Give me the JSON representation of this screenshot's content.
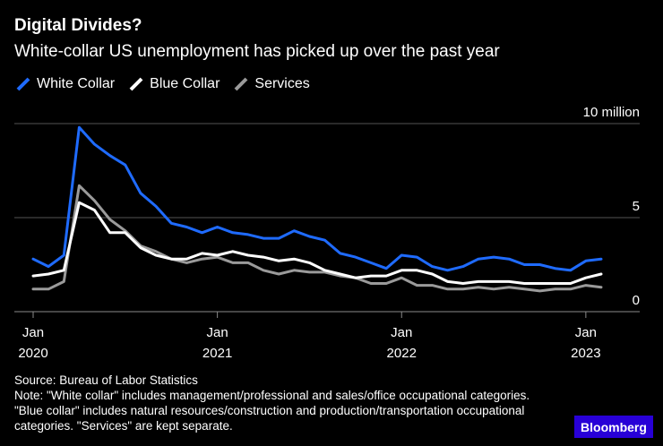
{
  "title": "Digital Divides?",
  "subtitle": "White-collar US unemployment has picked up over the past year",
  "legend": [
    {
      "name": "White Collar",
      "color": "#1f6bff"
    },
    {
      "name": "Blue Collar",
      "color": "#ffffff"
    },
    {
      "name": "Services",
      "color": "#9a9a9a"
    }
  ],
  "source": "Source: Bureau of Labor Statistics",
  "note": "Note: \"White collar\" includes management/professional and sales/office occupational categories. \"Blue collar\" includes natural resources/construction and production/transportation occupational categories. \"Services\" are kept separate.",
  "brand": "Bloomberg",
  "chart_data": {
    "type": "line",
    "x": [
      "2020-01",
      "2020-02",
      "2020-03",
      "2020-04",
      "2020-05",
      "2020-06",
      "2020-07",
      "2020-08",
      "2020-09",
      "2020-10",
      "2020-11",
      "2020-12",
      "2021-01",
      "2021-02",
      "2021-03",
      "2021-04",
      "2021-05",
      "2021-06",
      "2021-07",
      "2021-08",
      "2021-09",
      "2021-10",
      "2021-11",
      "2021-12",
      "2022-01",
      "2022-02",
      "2022-03",
      "2022-04",
      "2022-05",
      "2022-06",
      "2022-07",
      "2022-08",
      "2022-09",
      "2022-10",
      "2022-11",
      "2022-12",
      "2023-01",
      "2023-02"
    ],
    "series": [
      {
        "name": "White Collar",
        "color": "#1f6bff",
        "values": [
          2.8,
          2.4,
          3.0,
          9.8,
          8.9,
          8.3,
          7.8,
          6.3,
          5.6,
          4.7,
          4.5,
          4.2,
          4.5,
          4.2,
          4.1,
          3.9,
          3.9,
          4.3,
          4.0,
          3.8,
          3.1,
          2.9,
          2.6,
          2.3,
          3.0,
          2.9,
          2.4,
          2.2,
          2.4,
          2.8,
          2.9,
          2.8,
          2.5,
          2.5,
          2.3,
          2.2,
          2.7,
          2.8
        ]
      },
      {
        "name": "Blue Collar",
        "color": "#ffffff",
        "values": [
          1.9,
          2.0,
          2.2,
          5.8,
          5.4,
          4.2,
          4.2,
          3.4,
          3.0,
          2.8,
          2.8,
          3.1,
          3.0,
          3.2,
          3.0,
          2.9,
          2.7,
          2.8,
          2.6,
          2.2,
          2.0,
          1.8,
          1.9,
          1.9,
          2.2,
          2.2,
          2.0,
          1.6,
          1.5,
          1.6,
          1.6,
          1.6,
          1.5,
          1.5,
          1.5,
          1.5,
          1.8,
          2.0
        ]
      },
      {
        "name": "Services",
        "color": "#9a9a9a",
        "values": [
          1.2,
          1.2,
          1.6,
          6.7,
          5.9,
          4.9,
          4.3,
          3.5,
          3.2,
          2.8,
          2.6,
          2.8,
          2.9,
          2.6,
          2.6,
          2.2,
          2.0,
          2.2,
          2.1,
          2.1,
          1.9,
          1.8,
          1.5,
          1.5,
          1.8,
          1.4,
          1.4,
          1.2,
          1.2,
          1.3,
          1.2,
          1.3,
          1.2,
          1.1,
          1.2,
          1.2,
          1.4,
          1.3
        ]
      }
    ],
    "y_ticks": [
      {
        "value": 0,
        "label": "0"
      },
      {
        "value": 5,
        "label": "5"
      },
      {
        "value": 10,
        "label": "10 million"
      }
    ],
    "x_ticks": [
      {
        "x": "2020-01",
        "month": "Jan",
        "year": "2020"
      },
      {
        "x": "2021-01",
        "month": "Jan",
        "year": "2021"
      },
      {
        "x": "2022-01",
        "month": "Jan",
        "year": "2022"
      },
      {
        "x": "2023-01",
        "month": "Jan",
        "year": "2023"
      }
    ],
    "ylim": [
      0,
      10
    ],
    "grid": true,
    "legend_position": "top-left"
  }
}
